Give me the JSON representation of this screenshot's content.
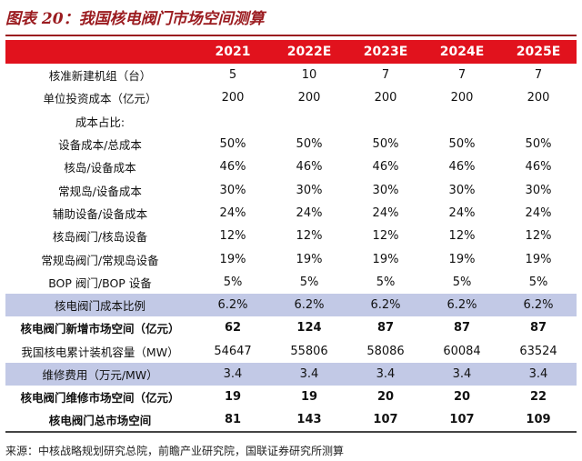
{
  "title": "图表 20：我国核电阀门市场空间测算",
  "colors": {
    "header_red": "#e1121d",
    "title_red": "#9b1c20",
    "highlight_blue": "#c2c9e6"
  },
  "columns": [
    "2021",
    "2022E",
    "2023E",
    "2024E",
    "2025E"
  ],
  "rows": [
    {
      "label": "核准新建机组（台）",
      "values": [
        "5",
        "10",
        "7",
        "7",
        "7"
      ]
    },
    {
      "label": "单位投资成本（亿元）",
      "values": [
        "200",
        "200",
        "200",
        "200",
        "200"
      ]
    },
    {
      "label": "成本占比:",
      "values": [
        "",
        "",
        "",
        "",
        ""
      ]
    },
    {
      "label": "设备成本/总成本",
      "values": [
        "50%",
        "50%",
        "50%",
        "50%",
        "50%"
      ]
    },
    {
      "label": "核岛/设备成本",
      "values": [
        "46%",
        "46%",
        "46%",
        "46%",
        "46%"
      ]
    },
    {
      "label": "常规岛/设备成本",
      "values": [
        "30%",
        "30%",
        "30%",
        "30%",
        "30%"
      ]
    },
    {
      "label": "辅助设备/设备成本",
      "values": [
        "24%",
        "24%",
        "24%",
        "24%",
        "24%"
      ]
    },
    {
      "label": "核岛阀门/核岛设备",
      "values": [
        "12%",
        "12%",
        "12%",
        "12%",
        "12%"
      ]
    },
    {
      "label": "常规岛阀门/常规岛设备",
      "values": [
        "19%",
        "19%",
        "19%",
        "19%",
        "19%"
      ]
    },
    {
      "label": "BOP 阀门/BOP 设备",
      "values": [
        "5%",
        "5%",
        "5%",
        "5%",
        "5%"
      ]
    },
    {
      "label": "核电阀门成本比例",
      "values": [
        "6.2%",
        "6.2%",
        "6.2%",
        "6.2%",
        "6.2%"
      ]
    },
    {
      "label": "核电阀门新增市场空间（亿元）",
      "values": [
        "62",
        "124",
        "87",
        "87",
        "87"
      ]
    },
    {
      "label": "我国核电累计装机容量（MW）",
      "values": [
        "54647",
        "55806",
        "58086",
        "60084",
        "63524"
      ]
    },
    {
      "label": "维修费用（万元/MW）",
      "values": [
        "3.4",
        "3.4",
        "3.4",
        "3.4",
        "3.4"
      ]
    },
    {
      "label": "核电阀门维修市场空间（亿元）",
      "values": [
        "19",
        "19",
        "20",
        "20",
        "22"
      ]
    },
    {
      "label": "核电阀门总市场空间",
      "values": [
        "81",
        "143",
        "107",
        "107",
        "109"
      ]
    }
  ],
  "source": "来源：中核战略规划研究总院，前瞻产业研究院，国联证券研究所测算"
}
